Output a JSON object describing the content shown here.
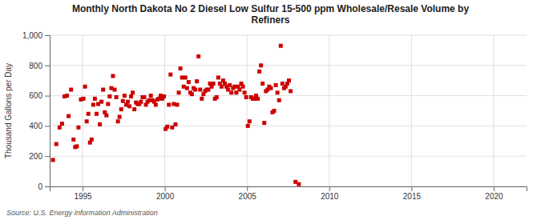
{
  "chart_data": {
    "type": "scatter",
    "title": "Monthly North Dakota No 2 Diesel Low Sulfur 15-500 ppm Wholesale/Resale Volume by\nRefiners",
    "y_label": "Thousand Gallons per Day",
    "source": "Source: U.S. Energy Information Administration",
    "color": "#cc0000",
    "marker": "square",
    "grid": true,
    "xlim": [
      1993.0,
      2022.0
    ],
    "xticks": [
      1995,
      2000,
      2005,
      2010,
      2015,
      2020
    ],
    "ylim": [
      0,
      1000
    ],
    "yticks": [
      0,
      200,
      400,
      600,
      800,
      {
        "value": 1000,
        "label": "1,000"
      }
    ],
    "x": [
      1993.2,
      1993.4,
      1993.6,
      1993.75,
      1993.9,
      1994.05,
      1994.15,
      1994.3,
      1994.45,
      1994.55,
      1994.65,
      1994.75,
      1994.9,
      1995.05,
      1995.15,
      1995.25,
      1995.35,
      1995.45,
      1995.55,
      1995.65,
      1995.75,
      1995.85,
      1995.95,
      1996.05,
      1996.15,
      1996.25,
      1996.35,
      1996.45,
      1996.55,
      1996.65,
      1996.75,
      1996.85,
      1996.95,
      1997.05,
      1997.15,
      1997.25,
      1997.35,
      1997.45,
      1997.55,
      1997.65,
      1997.75,
      1997.85,
      1997.95,
      1998.05,
      1998.15,
      1998.25,
      1998.35,
      1998.45,
      1998.55,
      1998.65,
      1998.75,
      1998.85,
      1998.95,
      1999.05,
      1999.15,
      1999.25,
      1999.35,
      1999.45,
      1999.55,
      1999.65,
      1999.75,
      1999.85,
      1999.95,
      2000.05,
      2000.15,
      2000.25,
      2000.35,
      2000.45,
      2000.55,
      2000.65,
      2000.75,
      2000.85,
      2000.95,
      2001.05,
      2001.15,
      2001.25,
      2001.35,
      2001.45,
      2001.55,
      2001.65,
      2001.75,
      2001.85,
      2001.95,
      2002.05,
      2002.15,
      2002.25,
      2002.35,
      2002.45,
      2002.55,
      2002.65,
      2002.75,
      2002.85,
      2002.95,
      2003.05,
      2003.15,
      2003.25,
      2003.35,
      2003.45,
      2003.55,
      2003.65,
      2003.75,
      2003.85,
      2003.95,
      2004.05,
      2004.15,
      2004.25,
      2004.35,
      2004.45,
      2004.55,
      2004.65,
      2004.75,
      2004.85,
      2004.95,
      2005.05,
      2005.15,
      2005.25,
      2005.35,
      2005.45,
      2005.55,
      2005.65,
      2005.75,
      2005.85,
      2005.95,
      2006.05,
      2006.15,
      2006.25,
      2006.35,
      2006.45,
      2006.55,
      2006.65,
      2006.75,
      2006.85,
      2006.95,
      2007.05,
      2007.15,
      2007.25,
      2007.35,
      2007.45,
      2007.55,
      2007.65,
      2007.95,
      2008.15
    ],
    "values": [
      175,
      280,
      390,
      415,
      595,
      600,
      465,
      640,
      310,
      260,
      265,
      390,
      575,
      580,
      660,
      430,
      480,
      290,
      310,
      540,
      580,
      480,
      545,
      410,
      560,
      640,
      490,
      470,
      545,
      595,
      650,
      730,
      640,
      590,
      430,
      460,
      510,
      565,
      600,
      540,
      560,
      530,
      595,
      620,
      510,
      555,
      545,
      545,
      560,
      590,
      590,
      540,
      560,
      570,
      600,
      570,
      560,
      540,
      575,
      580,
      600,
      580,
      595,
      380,
      395,
      540,
      740,
      390,
      545,
      410,
      540,
      620,
      780,
      720,
      660,
      720,
      650,
      690,
      620,
      610,
      650,
      640,
      695,
      860,
      640,
      580,
      610,
      630,
      640,
      640,
      680,
      660,
      680,
      580,
      590,
      720,
      680,
      660,
      700,
      680,
      660,
      640,
      670,
      620,
      650,
      660,
      620,
      660,
      640,
      680,
      660,
      620,
      590,
      400,
      430,
      590,
      580,
      580,
      600,
      580,
      760,
      800,
      680,
      420,
      630,
      640,
      660,
      650,
      490,
      500,
      670,
      620,
      570,
      930,
      680,
      650,
      660,
      680,
      700,
      630,
      30,
      15
    ]
  }
}
